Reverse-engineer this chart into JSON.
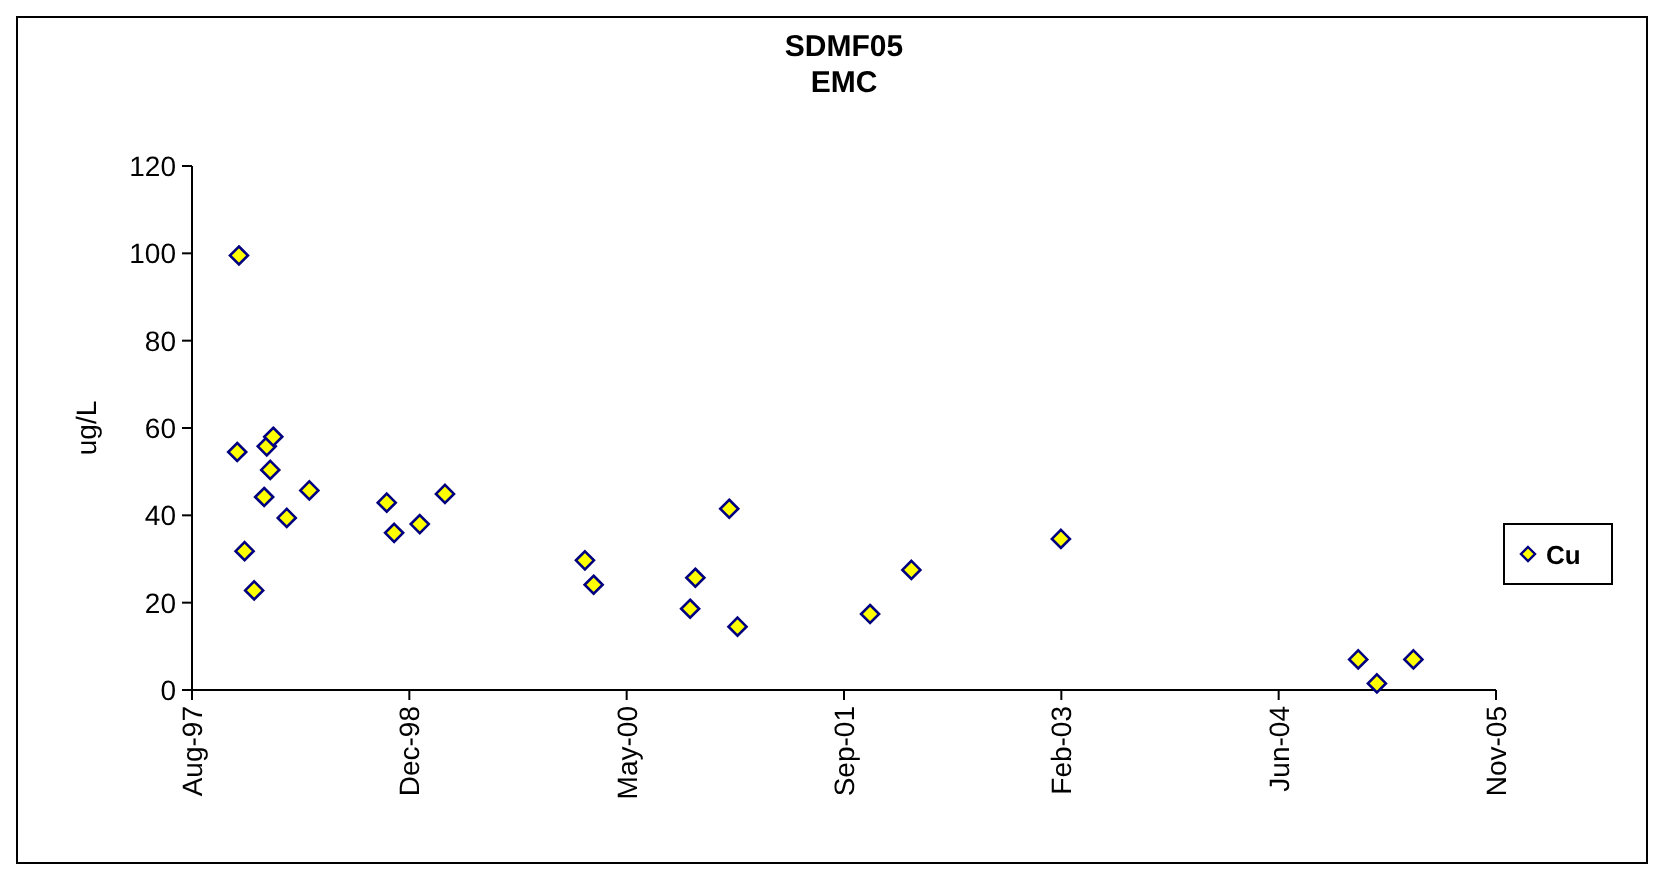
{
  "chart_data": {
    "type": "scatter",
    "title": "SDMF05\nEMC",
    "ylabel": "ug/L",
    "marker": "diamond",
    "legend": "right",
    "grid": false,
    "xlim": [
      "1997-08-15",
      "2005-11-01"
    ],
    "xticks": [
      {
        "value": "1997-08-15",
        "label": "Aug-97"
      },
      {
        "value": "1998-12-28",
        "label": "Dec-98"
      },
      {
        "value": "2000-05-11",
        "label": "May-00"
      },
      {
        "value": "2001-09-23",
        "label": "Sep-01"
      },
      {
        "value": "2003-02-05",
        "label": "Feb-03"
      },
      {
        "value": "2004-06-19",
        "label": "Jun-04"
      },
      {
        "value": "2005-11-01",
        "label": "Nov-05"
      }
    ],
    "ylim": [
      0,
      120
    ],
    "yticks": [
      0,
      20,
      40,
      60,
      80,
      100,
      120
    ],
    "series": [
      {
        "name": "Cu",
        "color": "#ffff00",
        "x": [
          "1997-11-27",
          "1997-12-01",
          "1997-12-14",
          "1998-01-05",
          "1998-01-28",
          "1998-02-03",
          "1998-02-11",
          "1998-02-18",
          "1998-03-21",
          "1998-05-12",
          "1998-11-06",
          "1998-11-23",
          "1999-01-21",
          "1999-03-20",
          "2000-02-05",
          "2000-02-25",
          "2000-10-04",
          "2000-10-16",
          "2001-01-02",
          "2001-01-21",
          "2001-11-22",
          "2002-02-25",
          "2003-02-04",
          "2004-12-19",
          "2005-01-31",
          "2005-04-25"
        ],
        "values": [
          54.5,
          99.5,
          31.8,
          22.8,
          44.2,
          55.8,
          50.4,
          58,
          39.4,
          45.7,
          42.9,
          36,
          38,
          44.9,
          29.7,
          24.1,
          18.6,
          25.7,
          41.5,
          14.5,
          17.4,
          27.5,
          34.6,
          7,
          1.5,
          7
        ]
      }
    ]
  }
}
